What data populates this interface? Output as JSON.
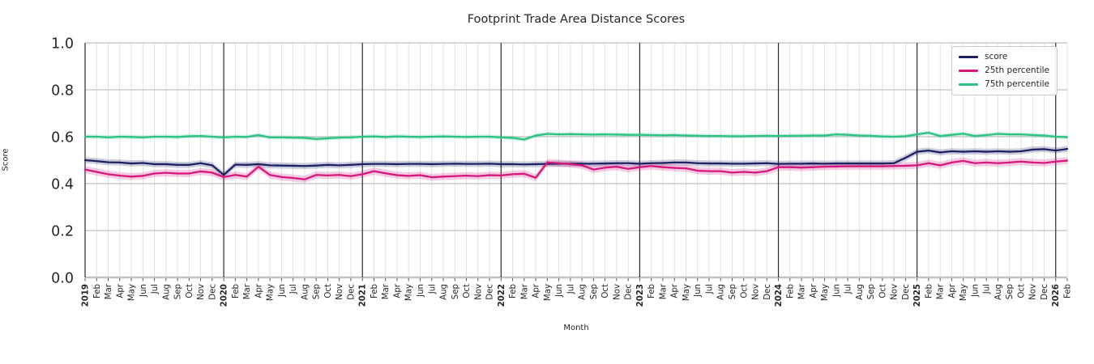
{
  "chart_data": {
    "type": "line",
    "title": "Footprint Trade Area Distance Scores",
    "xlabel": "Month",
    "ylabel": "Score",
    "ylim": [
      0.0,
      1.0
    ],
    "yticks": [
      0.0,
      0.2,
      0.4,
      0.6,
      0.8,
      1.0
    ],
    "grid": "on",
    "legend_position": "upper right",
    "x_labels": [
      "2019",
      "Feb",
      "Mar",
      "Apr",
      "May",
      "Jun",
      "Jul",
      "Aug",
      "Sep",
      "Oct",
      "Nov",
      "Dec",
      "2020",
      "Feb",
      "Mar",
      "Apr",
      "May",
      "Jun",
      "Jul",
      "Aug",
      "Sep",
      "Oct",
      "Nov",
      "Dec",
      "2021",
      "Feb",
      "Mar",
      "Apr",
      "May",
      "Jun",
      "Jul",
      "Aug",
      "Sep",
      "Oct",
      "Nov",
      "Dec",
      "2022",
      "Feb",
      "Mar",
      "Apr",
      "May",
      "Jun",
      "Jul",
      "Aug",
      "Sep",
      "Oct",
      "Nov",
      "Dec",
      "2023",
      "Feb",
      "Mar",
      "Apr",
      "May",
      "Jun",
      "Jul",
      "Aug",
      "Sep",
      "Oct",
      "Nov",
      "Dec",
      "2024",
      "Feb",
      "Mar",
      "Apr",
      "May",
      "Jun",
      "Jul",
      "Aug",
      "Sep",
      "Oct",
      "Nov",
      "Dec",
      "2025",
      "Feb",
      "Mar",
      "Apr",
      "May",
      "Jun",
      "Jul",
      "Aug",
      "Sep",
      "Oct",
      "Nov",
      "Dec",
      "2026",
      "Feb"
    ],
    "series": [
      {
        "name": "score",
        "color": "#1d2263",
        "band_delta": 0.013,
        "values": [
          0.5,
          0.496,
          0.491,
          0.49,
          0.486,
          0.488,
          0.483,
          0.483,
          0.48,
          0.48,
          0.487,
          0.478,
          0.437,
          0.481,
          0.48,
          0.483,
          0.478,
          0.477,
          0.476,
          0.475,
          0.477,
          0.48,
          0.478,
          0.48,
          0.483,
          0.484,
          0.484,
          0.483,
          0.484,
          0.484,
          0.483,
          0.484,
          0.485,
          0.484,
          0.484,
          0.485,
          0.483,
          0.483,
          0.482,
          0.483,
          0.484,
          0.485,
          0.485,
          0.485,
          0.485,
          0.486,
          0.487,
          0.487,
          0.485,
          0.487,
          0.488,
          0.49,
          0.49,
          0.487,
          0.486,
          0.486,
          0.485,
          0.485,
          0.486,
          0.487,
          0.484,
          0.485,
          0.485,
          0.486,
          0.485,
          0.486,
          0.486,
          0.486,
          0.486,
          0.486,
          0.487,
          0.51,
          0.536,
          0.541,
          0.533,
          0.538,
          0.536,
          0.538,
          0.536,
          0.538,
          0.536,
          0.538,
          0.545,
          0.547,
          0.541,
          0.548
        ]
      },
      {
        "name": "25th percentile",
        "color": "#d6177e",
        "band_delta": 0.015,
        "values": [
          0.46,
          0.45,
          0.44,
          0.434,
          0.43,
          0.433,
          0.443,
          0.446,
          0.443,
          0.443,
          0.452,
          0.447,
          0.428,
          0.437,
          0.43,
          0.472,
          0.437,
          0.428,
          0.424,
          0.418,
          0.437,
          0.435,
          0.437,
          0.432,
          0.44,
          0.453,
          0.444,
          0.436,
          0.433,
          0.436,
          0.427,
          0.43,
          0.432,
          0.434,
          0.432,
          0.436,
          0.435,
          0.44,
          0.442,
          0.425,
          0.49,
          0.487,
          0.483,
          0.478,
          0.46,
          0.468,
          0.472,
          0.463,
          0.47,
          0.475,
          0.47,
          0.467,
          0.465,
          0.455,
          0.453,
          0.453,
          0.447,
          0.45,
          0.447,
          0.453,
          0.47,
          0.47,
          0.468,
          0.47,
          0.472,
          0.473,
          0.474,
          0.474,
          0.474,
          0.474,
          0.475,
          0.476,
          0.478,
          0.487,
          0.478,
          0.49,
          0.497,
          0.487,
          0.49,
          0.487,
          0.49,
          0.494,
          0.49,
          0.488,
          0.494,
          0.498
        ]
      },
      {
        "name": "75th percentile",
        "color": "#2cc285",
        "band_delta": 0.009,
        "values": [
          0.6,
          0.6,
          0.597,
          0.6,
          0.599,
          0.597,
          0.6,
          0.6,
          0.599,
          0.602,
          0.603,
          0.6,
          0.597,
          0.6,
          0.599,
          0.607,
          0.597,
          0.597,
          0.596,
          0.595,
          0.59,
          0.593,
          0.596,
          0.597,
          0.6,
          0.601,
          0.599,
          0.601,
          0.6,
          0.599,
          0.6,
          0.601,
          0.6,
          0.599,
          0.6,
          0.6,
          0.597,
          0.595,
          0.588,
          0.605,
          0.612,
          0.61,
          0.611,
          0.61,
          0.609,
          0.61,
          0.609,
          0.608,
          0.608,
          0.607,
          0.606,
          0.607,
          0.605,
          0.604,
          0.603,
          0.603,
          0.602,
          0.602,
          0.603,
          0.604,
          0.603,
          0.604,
          0.604,
          0.605,
          0.605,
          0.61,
          0.608,
          0.605,
          0.604,
          0.601,
          0.6,
          0.602,
          0.61,
          0.617,
          0.603,
          0.608,
          0.613,
          0.603,
          0.607,
          0.612,
          0.61,
          0.61,
          0.607,
          0.605,
          0.6,
          0.598
        ]
      }
    ],
    "colors": {
      "grid_minor": "#dedede",
      "grid_major_h": "#cccccc",
      "year_line": "#2a2a2a",
      "tick_text": "#262626",
      "bottom_spine": "#c3c3c3"
    }
  }
}
